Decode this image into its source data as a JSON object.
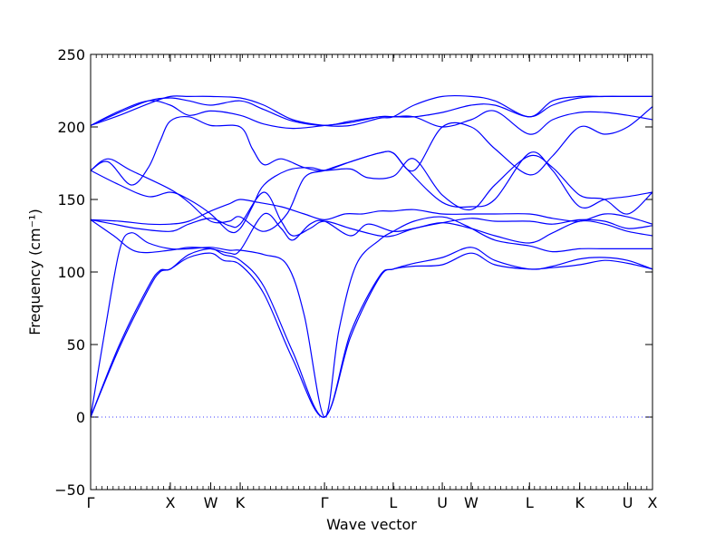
{
  "chart_data": {
    "type": "line",
    "title": "",
    "xlabel": "Wave vector",
    "ylabel": "Frequency (cm⁻¹)",
    "ylim": [
      -50,
      250
    ],
    "yticks": [
      -50,
      0,
      50,
      100,
      150,
      200,
      250
    ],
    "xlim": [
      0,
      9.73
    ],
    "xticks": [
      {
        "label": "Γ",
        "x": 0.0
      },
      {
        "label": "X",
        "x": 1.38
      },
      {
        "label": "W",
        "x": 2.08
      },
      {
        "label": "K",
        "x": 2.59
      },
      {
        "label": "Γ",
        "x": 4.05
      },
      {
        "label": "L",
        "x": 5.24
      },
      {
        "label": "U",
        "x": 6.09
      },
      {
        "label": "W",
        "x": 6.59
      },
      {
        "label": "L",
        "x": 7.6
      },
      {
        "label": "K",
        "x": 8.47
      },
      {
        "label": "U",
        "x": 9.3
      },
      {
        "label": "X",
        "x": 9.73
      }
    ],
    "zero_line": {
      "y": 0,
      "style": "dotted"
    },
    "series": [
      {
        "values": [
          [
            0,
            0
          ],
          [
            0.5,
            48
          ],
          [
            1.0,
            88
          ],
          [
            1.2,
            100
          ],
          [
            1.38,
            102
          ],
          [
            1.7,
            110
          ],
          [
            2.08,
            113
          ],
          [
            2.3,
            108
          ],
          [
            2.59,
            105
          ],
          [
            3.0,
            85
          ],
          [
            3.5,
            40
          ],
          [
            4.05,
            0
          ],
          [
            4.5,
            55
          ],
          [
            5.0,
            96
          ],
          [
            5.24,
            102
          ],
          [
            5.6,
            104
          ],
          [
            6.09,
            105
          ],
          [
            6.59,
            113
          ],
          [
            7.0,
            105
          ],
          [
            7.6,
            102
          ],
          [
            8.0,
            103
          ],
          [
            8.47,
            105
          ],
          [
            8.9,
            108
          ],
          [
            9.3,
            106
          ],
          [
            9.73,
            102
          ]
        ]
      },
      {
        "values": [
          [
            0,
            0
          ],
          [
            0.5,
            50
          ],
          [
            1.0,
            90
          ],
          [
            1.2,
            101
          ],
          [
            1.38,
            102
          ],
          [
            1.7,
            112
          ],
          [
            2.08,
            116
          ],
          [
            2.3,
            112
          ],
          [
            2.59,
            108
          ],
          [
            3.0,
            90
          ],
          [
            3.5,
            45
          ],
          [
            4.05,
            0
          ],
          [
            4.5,
            58
          ],
          [
            5.0,
            97
          ],
          [
            5.24,
            102
          ],
          [
            5.6,
            106
          ],
          [
            6.09,
            110
          ],
          [
            6.59,
            117
          ],
          [
            7.0,
            108
          ],
          [
            7.6,
            102
          ],
          [
            8.0,
            104
          ],
          [
            8.47,
            109
          ],
          [
            8.9,
            110
          ],
          [
            9.3,
            108
          ],
          [
            9.73,
            102
          ]
        ]
      },
      {
        "values": [
          [
            0,
            0
          ],
          [
            0.25,
            60
          ],
          [
            0.5,
            115
          ],
          [
            0.7,
            127
          ],
          [
            1.0,
            120
          ],
          [
            1.38,
            116
          ],
          [
            1.7,
            116
          ],
          [
            2.08,
            117
          ],
          [
            2.4,
            115
          ],
          [
            2.59,
            115
          ],
          [
            3.0,
            112
          ],
          [
            3.4,
            105
          ],
          [
            3.7,
            70
          ],
          [
            4.05,
            0
          ],
          [
            4.3,
            60
          ],
          [
            4.6,
            105
          ],
          [
            5.0,
            122
          ],
          [
            5.24,
            128
          ],
          [
            5.6,
            135
          ],
          [
            6.09,
            138
          ],
          [
            6.5,
            132
          ],
          [
            7.0,
            122
          ],
          [
            7.6,
            118
          ],
          [
            8.0,
            114
          ],
          [
            8.47,
            116
          ],
          [
            8.9,
            116
          ],
          [
            9.3,
            116
          ],
          [
            9.73,
            116
          ]
        ]
      },
      {
        "values": [
          [
            0,
            136
          ],
          [
            0.4,
            125
          ],
          [
            0.8,
            114
          ],
          [
            1.38,
            115
          ],
          [
            1.7,
            117
          ],
          [
            2.08,
            116
          ],
          [
            2.4,
            113
          ],
          [
            2.59,
            115
          ],
          [
            3.0,
            140
          ],
          [
            3.3,
            130
          ],
          [
            3.5,
            122
          ],
          [
            3.8,
            133
          ],
          [
            4.05,
            135
          ],
          [
            4.5,
            125
          ],
          [
            4.8,
            133
          ],
          [
            5.24,
            128
          ],
          [
            5.6,
            130
          ],
          [
            6.09,
            134
          ],
          [
            6.59,
            130
          ],
          [
            7.0,
            125
          ],
          [
            7.6,
            120
          ],
          [
            8.0,
            127
          ],
          [
            8.47,
            135
          ],
          [
            8.9,
            133
          ],
          [
            9.3,
            128
          ],
          [
            9.73,
            125
          ]
        ]
      },
      {
        "values": [
          [
            0,
            136
          ],
          [
            0.4,
            133
          ],
          [
            0.8,
            130
          ],
          [
            1.38,
            128
          ],
          [
            1.7,
            133
          ],
          [
            2.08,
            137
          ],
          [
            2.4,
            132
          ],
          [
            2.59,
            133
          ],
          [
            3.0,
            155
          ],
          [
            3.3,
            135
          ],
          [
            3.5,
            125
          ],
          [
            3.8,
            130
          ],
          [
            4.05,
            135
          ],
          [
            4.5,
            130
          ],
          [
            5.0,
            125
          ],
          [
            5.24,
            125
          ],
          [
            5.6,
            130
          ],
          [
            6.09,
            134
          ],
          [
            6.59,
            137
          ],
          [
            7.0,
            135
          ],
          [
            7.6,
            135
          ],
          [
            8.0,
            133
          ],
          [
            8.47,
            136
          ],
          [
            8.9,
            135
          ],
          [
            9.3,
            130
          ],
          [
            9.73,
            132
          ]
        ]
      },
      {
        "values": [
          [
            0,
            136
          ],
          [
            0.5,
            135
          ],
          [
            1.0,
            133
          ],
          [
            1.38,
            133
          ],
          [
            1.7,
            135
          ],
          [
            2.08,
            142
          ],
          [
            2.4,
            147
          ],
          [
            2.59,
            150
          ],
          [
            2.9,
            148
          ],
          [
            3.3,
            145
          ],
          [
            3.7,
            140
          ],
          [
            4.05,
            136
          ],
          [
            4.4,
            140
          ],
          [
            4.7,
            140
          ],
          [
            5.0,
            142
          ],
          [
            5.24,
            142
          ],
          [
            5.6,
            143
          ],
          [
            6.09,
            140
          ],
          [
            6.59,
            140
          ],
          [
            7.0,
            140
          ],
          [
            7.6,
            140
          ],
          [
            8.0,
            137
          ],
          [
            8.47,
            135
          ],
          [
            8.9,
            140
          ],
          [
            9.3,
            138
          ],
          [
            9.73,
            133
          ]
        ]
      },
      {
        "values": [
          [
            0,
            170
          ],
          [
            0.5,
            160
          ],
          [
            1.0,
            152
          ],
          [
            1.38,
            155
          ],
          [
            1.7,
            150
          ],
          [
            2.08,
            140
          ],
          [
            2.4,
            128
          ],
          [
            2.59,
            130
          ],
          [
            2.8,
            145
          ],
          [
            3.0,
            160
          ],
          [
            3.4,
            170
          ],
          [
            3.8,
            172
          ],
          [
            4.05,
            170
          ],
          [
            4.5,
            171
          ],
          [
            4.8,
            165
          ],
          [
            5.24,
            166
          ],
          [
            5.6,
            178
          ],
          [
            6.09,
            153
          ],
          [
            6.59,
            143
          ],
          [
            7.0,
            160
          ],
          [
            7.6,
            180
          ],
          [
            8.0,
            172
          ],
          [
            8.47,
            153
          ],
          [
            8.9,
            150
          ],
          [
            9.3,
            140
          ],
          [
            9.73,
            155
          ]
        ]
      },
      {
        "values": [
          [
            0,
            170
          ],
          [
            0.3,
            178
          ],
          [
            0.7,
            170
          ],
          [
            1.38,
            157
          ],
          [
            1.7,
            148
          ],
          [
            2.08,
            135
          ],
          [
            2.4,
            135
          ],
          [
            2.59,
            138
          ],
          [
            3.0,
            128
          ],
          [
            3.4,
            140
          ],
          [
            3.7,
            165
          ],
          [
            4.05,
            170
          ],
          [
            4.5,
            176
          ],
          [
            5.0,
            182
          ],
          [
            5.24,
            182
          ],
          [
            5.5,
            170
          ],
          [
            6.09,
            148
          ],
          [
            6.59,
            145
          ],
          [
            7.0,
            150
          ],
          [
            7.6,
            182
          ],
          [
            8.0,
            170
          ],
          [
            8.47,
            145
          ],
          [
            8.9,
            150
          ],
          [
            9.3,
            152
          ],
          [
            9.73,
            155
          ]
        ]
      },
      {
        "values": [
          [
            0,
            170
          ],
          [
            0.3,
            176
          ],
          [
            0.7,
            160
          ],
          [
            1.0,
            172
          ],
          [
            1.2,
            190
          ],
          [
            1.38,
            204
          ],
          [
            1.7,
            207
          ],
          [
            2.08,
            201
          ],
          [
            2.59,
            200
          ],
          [
            2.8,
            185
          ],
          [
            3.0,
            174
          ],
          [
            3.3,
            178
          ],
          [
            3.7,
            172
          ],
          [
            4.05,
            170
          ],
          [
            4.5,
            176
          ],
          [
            5.0,
            182
          ],
          [
            5.24,
            182
          ],
          [
            5.6,
            170
          ],
          [
            6.09,
            200
          ],
          [
            6.59,
            200
          ],
          [
            7.0,
            185
          ],
          [
            7.6,
            167
          ],
          [
            8.0,
            180
          ],
          [
            8.47,
            200
          ],
          [
            8.9,
            195
          ],
          [
            9.3,
            200
          ],
          [
            9.73,
            214
          ]
        ]
      },
      {
        "values": [
          [
            0,
            201
          ],
          [
            0.5,
            211
          ],
          [
            1.0,
            218
          ],
          [
            1.38,
            215
          ],
          [
            1.7,
            208
          ],
          [
            2.08,
            211
          ],
          [
            2.59,
            208
          ],
          [
            3.0,
            202
          ],
          [
            3.5,
            199
          ],
          [
            4.05,
            201
          ],
          [
            4.5,
            203
          ],
          [
            5.0,
            207
          ],
          [
            5.24,
            207
          ],
          [
            5.6,
            207
          ],
          [
            6.09,
            200
          ],
          [
            6.59,
            205
          ],
          [
            7.0,
            211
          ],
          [
            7.6,
            195
          ],
          [
            8.0,
            205
          ],
          [
            8.47,
            210
          ],
          [
            8.9,
            210
          ],
          [
            9.3,
            208
          ],
          [
            9.73,
            205
          ]
        ]
      },
      {
        "values": [
          [
            0,
            201
          ],
          [
            0.5,
            210
          ],
          [
            1.0,
            218
          ],
          [
            1.38,
            220
          ],
          [
            1.7,
            218
          ],
          [
            2.08,
            215
          ],
          [
            2.59,
            218
          ],
          [
            3.0,
            212
          ],
          [
            3.5,
            204
          ],
          [
            4.05,
            201
          ],
          [
            4.5,
            204
          ],
          [
            5.0,
            207
          ],
          [
            5.24,
            207
          ],
          [
            5.6,
            207
          ],
          [
            6.09,
            210
          ],
          [
            6.59,
            215
          ],
          [
            7.0,
            215
          ],
          [
            7.6,
            207
          ],
          [
            8.0,
            215
          ],
          [
            8.47,
            220
          ],
          [
            8.9,
            221
          ],
          [
            9.3,
            221
          ],
          [
            9.73,
            221
          ]
        ]
      },
      {
        "values": [
          [
            0,
            201
          ],
          [
            0.5,
            208
          ],
          [
            1.0,
            216
          ],
          [
            1.38,
            221
          ],
          [
            1.7,
            221
          ],
          [
            2.08,
            221
          ],
          [
            2.59,
            220
          ],
          [
            3.0,
            215
          ],
          [
            3.5,
            205
          ],
          [
            4.05,
            201
          ],
          [
            4.5,
            201
          ],
          [
            5.0,
            206
          ],
          [
            5.24,
            207
          ],
          [
            5.6,
            215
          ],
          [
            6.09,
            221
          ],
          [
            6.59,
            221
          ],
          [
            7.0,
            218
          ],
          [
            7.6,
            207
          ],
          [
            8.0,
            218
          ],
          [
            8.47,
            221
          ],
          [
            8.9,
            221
          ],
          [
            9.3,
            221
          ],
          [
            9.73,
            221
          ]
        ]
      }
    ]
  }
}
